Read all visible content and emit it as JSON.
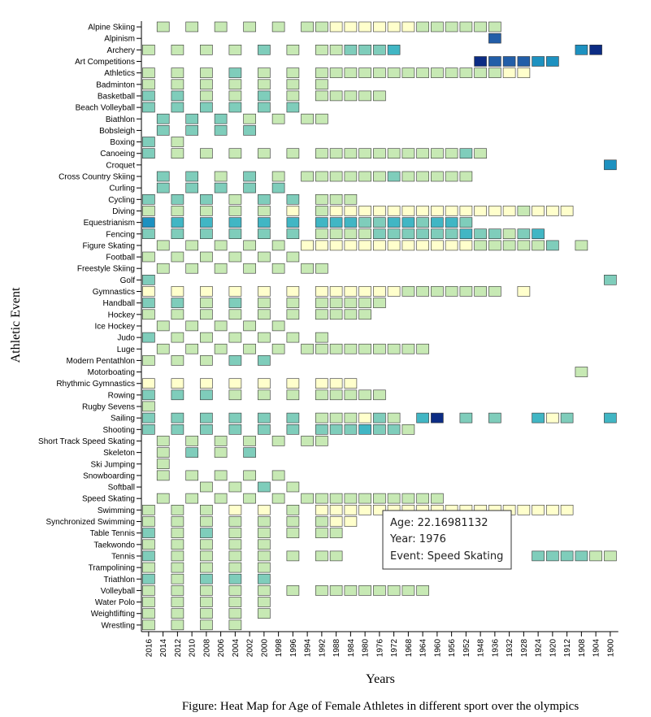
{
  "chart_data": {
    "type": "heatmap",
    "title": "",
    "caption": "Figure: Heat Map for Age of Female Athletes in different sport over the olympics",
    "xlabel": "Years",
    "ylabel": "Athletic Event",
    "years": [
      "2016",
      "2014",
      "2012",
      "2010",
      "2008",
      "2006",
      "2004",
      "2002",
      "2000",
      "1998",
      "1996",
      "1994",
      "1992",
      "1988",
      "1984",
      "1980",
      "1976",
      "1972",
      "1968",
      "1964",
      "1960",
      "1956",
      "1952",
      "1948",
      "1936",
      "1932",
      "1928",
      "1924",
      "1920",
      "1912",
      "1908",
      "1904",
      "1900"
    ],
    "events": [
      "Alpine Skiing",
      "Alpinism",
      "Archery",
      "Art Competitions",
      "Athletics",
      "Badminton",
      "Basketball",
      "Beach Volleyball",
      "Biathlon",
      "Bobsleigh",
      "Boxing",
      "Canoeing",
      "Croquet",
      "Cross Country Skiing",
      "Curling",
      "Cycling",
      "Diving",
      "Equestrianism",
      "Fencing",
      "Figure Skating",
      "Football",
      "Freestyle Skiing",
      "Golf",
      "Gymnastics",
      "Handball",
      "Hockey",
      "Ice Hockey",
      "Judo",
      "Luge",
      "Modern Pentathlon",
      "Motorboating",
      "Rhythmic Gymnastics",
      "Rowing",
      "Rugby Sevens",
      "Sailing",
      "Shooting",
      "Short Track Speed Skating",
      "Skeleton",
      "Ski Jumping",
      "Snowboarding",
      "Softball",
      "Speed Skating",
      "Swimming",
      "Synchronized Swimming",
      "Table Tennis",
      "Taekwondo",
      "Tennis",
      "Trampolining",
      "Triathlon",
      "Volleyball",
      "Water Polo",
      "Weightlifting",
      "Wrestling"
    ],
    "color_scale": [
      "#ffffcc",
      "#c7e9b4",
      "#7fcdbb",
      "#41b6c4",
      "#1d91c0",
      "#225ea8",
      "#0c2c84"
    ],
    "cells": {
      "Alpine Skiing": {
        "2014": 1,
        "2010": 1,
        "2006": 1,
        "2002": 1,
        "1998": 1,
        "1994": 1,
        "1992": 1,
        "1988": 0,
        "1984": 0,
        "1980": 0,
        "1976": 0,
        "1972": 0,
        "1968": 0,
        "1964": 1,
        "1960": 1,
        "1956": 1,
        "1952": 1,
        "1948": 1,
        "1936": 1
      },
      "Alpinism": {
        "1936": 5
      },
      "Archery": {
        "2016": 1,
        "2012": 1,
        "2008": 1,
        "2004": 1,
        "2000": 2,
        "1996": 1,
        "1992": 1,
        "1988": 1,
        "1984": 2,
        "1980": 2,
        "1976": 2,
        "1972": 3,
        "1908": 4,
        "1904": 6
      },
      "Art Competitions": {
        "1948": 6,
        "1936": 5,
        "1932": 5,
        "1928": 5,
        "1924": 4,
        "1920": 4
      },
      "Athletics": {
        "2016": 1,
        "2012": 1,
        "2008": 1,
        "2004": 2,
        "2000": 1,
        "1996": 1,
        "1992": 1,
        "1988": 1,
        "1984": 1,
        "1980": 1,
        "1976": 1,
        "1972": 1,
        "1968": 1,
        "1964": 1,
        "1960": 1,
        "1956": 1,
        "1952": 1,
        "1948": 1,
        "1936": 1,
        "1932": 0,
        "1928": 0
      },
      "Badminton": {
        "2016": 1,
        "2012": 1,
        "2008": 1,
        "2004": 1,
        "2000": 1,
        "1996": 1,
        "1992": 1
      },
      "Basketball": {
        "2016": 2,
        "2012": 2,
        "2008": 1,
        "2004": 1,
        "2000": 2,
        "1996": 1,
        "1992": 1,
        "1988": 1,
        "1984": 1,
        "1980": 1,
        "1976": 1
      },
      "Beach Volleyball": {
        "2016": 2,
        "2012": 2,
        "2008": 2,
        "2004": 2,
        "2000": 2,
        "1996": 2
      },
      "Biathlon": {
        "2014": 2,
        "2010": 2,
        "2006": 2,
        "2002": 1,
        "1998": 1,
        "1994": 1,
        "1992": 1
      },
      "Bobsleigh": {
        "2014": 2,
        "2010": 2,
        "2006": 2,
        "2002": 2
      },
      "Boxing": {
        "2016": 2,
        "2012": 1
      },
      "Canoeing": {
        "2016": 2,
        "2012": 1,
        "2008": 1,
        "2004": 1,
        "2000": 1,
        "1996": 1,
        "1992": 1,
        "1988": 1,
        "1984": 1,
        "1980": 1,
        "1976": 1,
        "1972": 1,
        "1968": 1,
        "1964": 1,
        "1960": 1,
        "1956": 1,
        "1952": 2,
        "1948": 1
      },
      "Croquet": {
        "1900": 4
      },
      "Cross Country Skiing": {
        "2014": 2,
        "2010": 2,
        "2006": 1,
        "2002": 2,
        "1998": 1,
        "1994": 1,
        "1992": 1,
        "1988": 1,
        "1984": 1,
        "1980": 1,
        "1976": 1,
        "1972": 2,
        "1968": 1,
        "1964": 1,
        "1960": 1,
        "1956": 1,
        "1952": 1
      },
      "Curling": {
        "2014": 2,
        "2010": 2,
        "2006": 2,
        "2002": 2,
        "1998": 2
      },
      "Cycling": {
        "2016": 2,
        "2012": 2,
        "2008": 2,
        "2004": 1,
        "2000": 2,
        "1996": 2,
        "1992": 1,
        "1988": 1,
        "1984": 1
      },
      "Diving": {
        "2016": 1,
        "2012": 1,
        "2008": 1,
        "2004": 1,
        "2000": 1,
        "1996": 0,
        "1992": 1,
        "1988": 0,
        "1984": 0,
        "1980": 0,
        "1976": 0,
        "1972": 0,
        "1968": 0,
        "1964": 0,
        "1960": 0,
        "1956": 0,
        "1952": 0,
        "1948": 0,
        "1936": 0,
        "1932": 0,
        "1928": 1,
        "1924": 0,
        "1920": 0,
        "1912": 0
      },
      "Equestrianism": {
        "2016": 4,
        "2012": 3,
        "2008": 3,
        "2004": 3,
        "2000": 3,
        "1996": 3,
        "1992": 3,
        "1988": 3,
        "1984": 3,
        "1980": 2,
        "1976": 2,
        "1972": 3,
        "1968": 3,
        "1964": 2,
        "1960": 3,
        "1956": 3,
        "1952": 2
      },
      "Fencing": {
        "2016": 2,
        "2012": 2,
        "2008": 2,
        "2004": 2,
        "2000": 2,
        "1996": 2,
        "1992": 1,
        "1988": 1,
        "1984": 1,
        "1980": 1,
        "1976": 2,
        "1972": 2,
        "1968": 2,
        "1964": 2,
        "1960": 2,
        "1956": 2,
        "1952": 3,
        "1948": 2,
        "1936": 2,
        "1932": 1,
        "1928": 2,
        "1924": 3
      },
      "Figure Skating": {
        "2014": 1,
        "2010": 1,
        "2006": 1,
        "2002": 1,
        "1998": 1,
        "1994": 0,
        "1992": 0,
        "1988": 0,
        "1984": 0,
        "1980": 0,
        "1976": 0,
        "1972": 0,
        "1968": 0,
        "1964": 0,
        "1960": 0,
        "1956": 0,
        "1952": 0,
        "1948": 1,
        "1936": 1,
        "1932": 1,
        "1928": 1,
        "1924": 1,
        "1920": 2,
        "1908": 1
      },
      "Football": {
        "2016": 1,
        "2012": 1,
        "2008": 1,
        "2004": 1,
        "2000": 1,
        "1996": 1
      },
      "Freestyle Skiing": {
        "2014": 1,
        "2010": 1,
        "2006": 1,
        "2002": 1,
        "1998": 1,
        "1994": 1,
        "1992": 1
      },
      "Golf": {
        "2016": 2,
        "1900": 2
      },
      "Gymnastics": {
        "2016": 0,
        "2012": 0,
        "2008": 0,
        "2004": 0,
        "2000": 0,
        "1996": 0,
        "1992": 0,
        "1988": 0,
        "1984": 0,
        "1980": 0,
        "1976": 0,
        "1972": 0,
        "1968": 1,
        "1964": 1,
        "1960": 1,
        "1956": 1,
        "1952": 1,
        "1948": 1,
        "1936": 1,
        "1928": 0
      },
      "Handball": {
        "2016": 2,
        "2012": 2,
        "2008": 1,
        "2004": 2,
        "2000": 1,
        "1996": 1,
        "1992": 1,
        "1988": 1,
        "1984": 1,
        "1980": 1,
        "1976": 1
      },
      "Hockey": {
        "2016": 1,
        "2012": 1,
        "2008": 1,
        "2004": 1,
        "2000": 1,
        "1996": 1,
        "1992": 1,
        "1988": 1,
        "1984": 1,
        "1980": 1
      },
      "Ice Hockey": {
        "2014": 1,
        "2010": 1,
        "2006": 1,
        "2002": 1,
        "1998": 1
      },
      "Judo": {
        "2016": 2,
        "2012": 1,
        "2008": 1,
        "2004": 1,
        "2000": 1,
        "1996": 1,
        "1992": 1
      },
      "Luge": {
        "2014": 1,
        "2010": 1,
        "2006": 1,
        "2002": 1,
        "1998": 1,
        "1994": 1,
        "1992": 1,
        "1988": 1,
        "1984": 1,
        "1980": 1,
        "1976": 1,
        "1972": 1,
        "1968": 1,
        "1964": 1
      },
      "Modern Pentathlon": {
        "2016": 1,
        "2012": 1,
        "2008": 1,
        "2004": 2,
        "2000": 2
      },
      "Motorboating": {
        "1908": 1
      },
      "Rhythmic Gymnastics": {
        "2016": 0,
        "2012": 0,
        "2008": 0,
        "2004": 0,
        "2000": 0,
        "1996": 0,
        "1992": 0,
        "1988": 0,
        "1984": 0
      },
      "Rowing": {
        "2016": 2,
        "2012": 2,
        "2008": 2,
        "2004": 1,
        "2000": 1,
        "1996": 1,
        "1992": 1,
        "1988": 1,
        "1984": 1,
        "1980": 1,
        "1976": 1
      },
      "Rugby Sevens": {
        "2016": 1
      },
      "Sailing": {
        "2016": 2,
        "2012": 2,
        "2008": 2,
        "2004": 2,
        "2000": 2,
        "1996": 2,
        "1992": 1,
        "1988": 1,
        "1984": 1,
        "1980": 0,
        "1976": 2,
        "1972": 1,
        "1964": 3,
        "1960": 6,
        "1952": 2,
        "1936": 2,
        "1924": 3,
        "1920": 0,
        "1912": 2,
        "1900": 3
      },
      "Shooting": {
        "2016": 2,
        "2012": 2,
        "2008": 2,
        "2004": 2,
        "2000": 2,
        "1996": 2,
        "1992": 2,
        "1988": 2,
        "1984": 2,
        "1980": 3,
        "1976": 2,
        "1972": 2,
        "1968": 1
      },
      "Short Track Speed Skating": {
        "2014": 1,
        "2010": 1,
        "2006": 1,
        "2002": 1,
        "1998": 1,
        "1994": 1,
        "1992": 1
      },
      "Skeleton": {
        "2014": 1,
        "2010": 2,
        "2006": 1,
        "2002": 2
      },
      "Ski Jumping": {
        "2014": 1
      },
      "Snowboarding": {
        "2014": 1,
        "2010": 1,
        "2006": 1,
        "2002": 1,
        "1998": 1
      },
      "Softball": {
        "2008": 1,
        "2004": 1,
        "2000": 2,
        "1996": 1
      },
      "Speed Skating": {
        "2014": 1,
        "2010": 1,
        "2006": 1,
        "2002": 1,
        "1998": 1,
        "1994": 1,
        "1992": 1,
        "1988": 1,
        "1984": 1,
        "1980": 1,
        "1976": 1,
        "1972": 1,
        "1968": 1,
        "1964": 1,
        "1960": 1
      },
      "Swimming": {
        "2016": 1,
        "2012": 1,
        "2008": 1,
        "2004": 0,
        "2000": 0,
        "1996": 1,
        "1992": 0,
        "1988": 0,
        "1984": 0,
        "1980": 0,
        "1976": 0,
        "1972": 0,
        "1968": 0,
        "1964": 0,
        "1960": 0,
        "1956": 0,
        "1952": 0,
        "1948": 0,
        "1936": 0,
        "1932": 0,
        "1928": 0,
        "1924": 0,
        "1920": 0,
        "1912": 0
      },
      "Synchronized Swimming": {
        "2016": 1,
        "2012": 1,
        "2008": 1,
        "2004": 1,
        "2000": 1,
        "1996": 1,
        "1992": 1,
        "1988": 0,
        "1984": 0
      },
      "Table Tennis": {
        "2016": 2,
        "2012": 1,
        "2008": 2,
        "2004": 1,
        "2000": 1,
        "1996": 1,
        "1992": 1,
        "1988": 1
      },
      "Taekwondo": {
        "2016": 1,
        "2012": 1,
        "2008": 1,
        "2004": 1,
        "2000": 1
      },
      "Tennis": {
        "2016": 2,
        "2012": 1,
        "2008": 1,
        "2004": 1,
        "2000": 1,
        "1996": 1,
        "1992": 1,
        "1988": 1,
        "1924": 2,
        "1920": 2,
        "1912": 2,
        "1908": 2,
        "1904": 1,
        "1900": 1
      },
      "Trampolining": {
        "2016": 1,
        "2012": 1,
        "2008": 1,
        "2004": 1,
        "2000": 1
      },
      "Triathlon": {
        "2016": 2,
        "2012": 1,
        "2008": 2,
        "2004": 2,
        "2000": 2
      },
      "Volleyball": {
        "2016": 1,
        "2012": 1,
        "2008": 1,
        "2004": 1,
        "2000": 1,
        "1996": 1,
        "1992": 1,
        "1988": 1,
        "1984": 1,
        "1980": 1,
        "1976": 1,
        "1972": 1,
        "1968": 1,
        "1964": 1
      },
      "Water Polo": {
        "2016": 1,
        "2012": 1,
        "2008": 1,
        "2004": 1,
        "2000": 1
      },
      "Weightlifting": {
        "2016": 1,
        "2012": 1,
        "2008": 1,
        "2004": 1,
        "2000": 1
      },
      "Wrestling": {
        "2016": 1,
        "2012": 1,
        "2008": 1,
        "2004": 1
      }
    },
    "tooltip": {
      "age": "Age: 22.16981132",
      "year": "Year: 1976",
      "event": "Event: Speed Skating"
    }
  }
}
